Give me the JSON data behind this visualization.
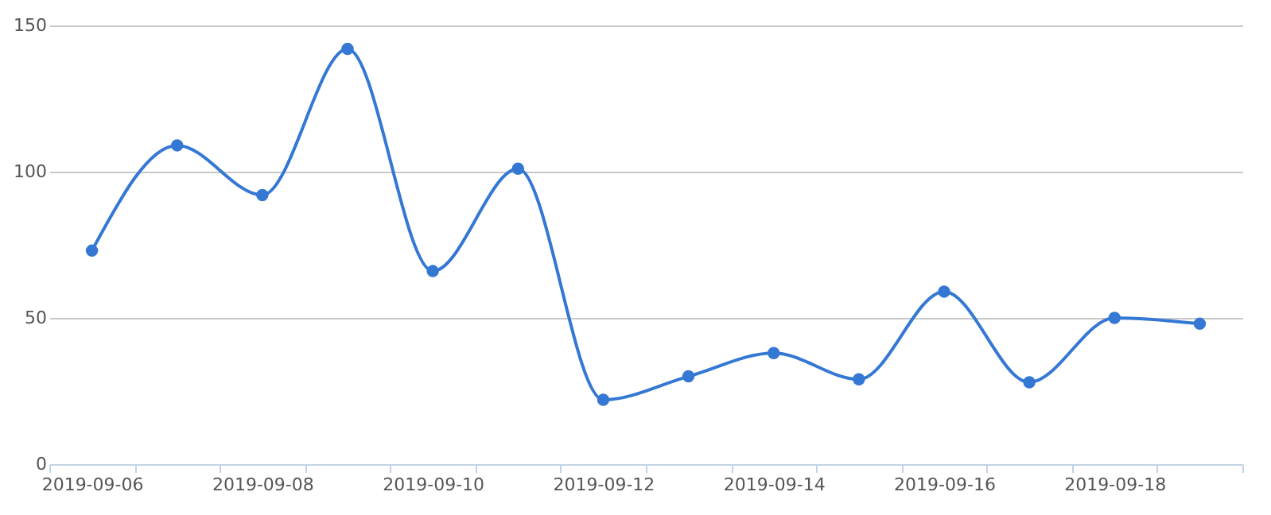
{
  "chart_data": {
    "type": "line",
    "categories": [
      "2019-09-06",
      null,
      "2019-09-08",
      null,
      "2019-09-10",
      null,
      "2019-09-12",
      null,
      "2019-09-14",
      null,
      "2019-09-16",
      null,
      "2019-09-18",
      null
    ],
    "series": [
      {
        "color": "#3478d4",
        "values": [
          73,
          109,
          92,
          142,
          66,
          101,
          22,
          30,
          38,
          29,
          59,
          28,
          50,
          48
        ]
      }
    ],
    "ylim": [
      0,
      150
    ],
    "yticks": [
      0,
      50,
      100,
      150
    ],
    "grid": "y",
    "marker": "circle",
    "line_style": "solid"
  }
}
